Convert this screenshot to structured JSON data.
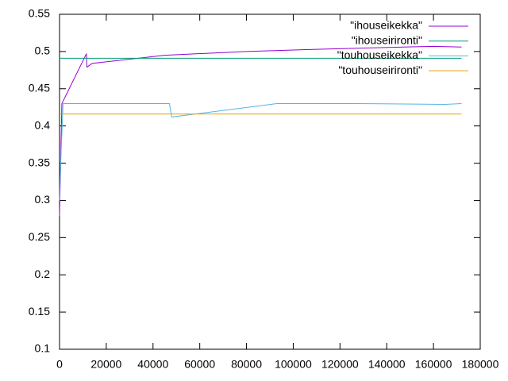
{
  "chart_data": {
    "type": "line",
    "xlim": [
      0,
      180000
    ],
    "xticks": [
      0,
      20000,
      40000,
      60000,
      80000,
      100000,
      120000,
      140000,
      160000,
      180000
    ],
    "ylim": [
      0.1,
      0.55
    ],
    "yticks": [
      0.1,
      0.15,
      0.2,
      0.25,
      0.3,
      0.35,
      0.4,
      0.45,
      0.5,
      0.55
    ],
    "legend": "top-right",
    "series": [
      {
        "name": "\"ihouseikekka\"",
        "color": "#9400d3",
        "x": [
          0,
          1000,
          11500,
          11700,
          14000,
          45000,
          80000,
          110000,
          160000,
          172000
        ],
        "values": [
          0.279,
          0.43,
          0.497,
          0.479,
          0.484,
          0.495,
          0.5,
          0.503,
          0.507,
          0.506
        ]
      },
      {
        "name": "\"ihouseirironti\"",
        "color": "#009e73",
        "x": [
          0,
          172000
        ],
        "values": [
          0.491,
          0.491
        ]
      },
      {
        "name": "\"touhouseikekka\"",
        "color": "#56b4e9",
        "x": [
          0,
          500,
          1500,
          47000,
          48000,
          93000,
          127000,
          165000,
          172000
        ],
        "values": [
          0.3,
          0.35,
          0.43,
          0.43,
          0.412,
          0.43,
          0.43,
          0.429,
          0.43
        ]
      },
      {
        "name": "\"touhouseirironti\"",
        "color": "#e69f00",
        "x": [
          0,
          172000
        ],
        "values": [
          0.416,
          0.416
        ]
      }
    ]
  }
}
